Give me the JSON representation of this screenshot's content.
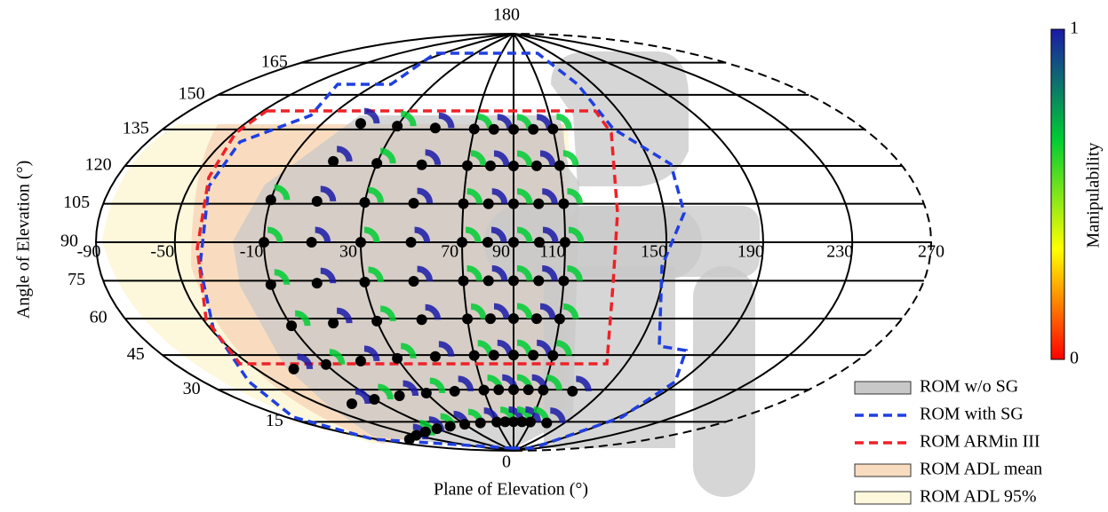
{
  "chart_data": {
    "type": "hammer",
    "x_label": "Plane of Elevation (°)",
    "y_label": "Angle of Elevation (°)",
    "xlim": [
      -90,
      270
    ],
    "xticks": [
      -90,
      -50,
      -10,
      30,
      70,
      90,
      110,
      150,
      190,
      230,
      270
    ],
    "ylim": [
      0,
      180
    ],
    "yticks": [
      0,
      15,
      30,
      45,
      60,
      75,
      90,
      105,
      120,
      135,
      150,
      165,
      180
    ],
    "colorbar": {
      "label": "Manipulability",
      "lim": [
        0,
        1
      ],
      "ticks": [
        0,
        1
      ],
      "colors": [
        "#ff0000",
        "#ffff00",
        "#00cc33",
        "#1a1aa6"
      ]
    },
    "legend": {
      "position": "lower right",
      "entries": [
        {
          "name": "ROM w/o SG",
          "style": "fill",
          "color": "#c8c8c8"
        },
        {
          "name": "ROM with SG",
          "style": "dashed",
          "color": "#1f3fe0"
        },
        {
          "name": "ROM ARMin III",
          "style": "dashed",
          "color": "#ee2228"
        },
        {
          "name": "ROM ADL mean",
          "style": "fill",
          "color": "#f9dcbf"
        },
        {
          "name": "ROM ADL 95%",
          "style": "fill",
          "color": "#fdf8dc"
        }
      ]
    }
  }
}
